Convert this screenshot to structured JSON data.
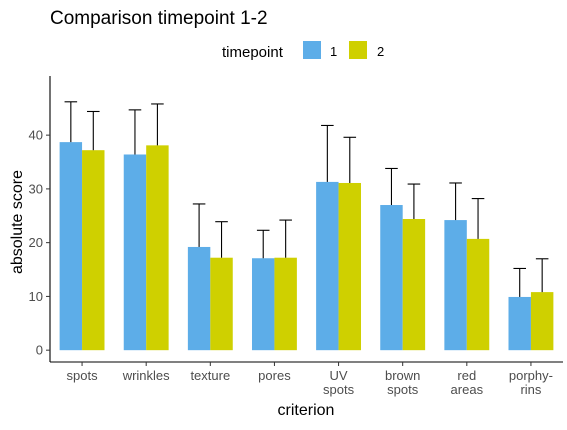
{
  "chart_data": {
    "type": "bar",
    "title": "Comparison timepoint 1-2",
    "xlabel": "criterion",
    "ylabel": "absolute score",
    "legend_title": "timepoint",
    "legend_position": "top",
    "ylim": [
      -2.2,
      51
    ],
    "yticks": [
      0,
      10,
      20,
      30,
      40
    ],
    "grid": false,
    "categories": [
      [
        "spots"
      ],
      [
        "wrinkles"
      ],
      [
        "texture"
      ],
      [
        "pores"
      ],
      [
        "UV",
        "spots"
      ],
      [
        "brown",
        "spots"
      ],
      [
        "red",
        "areas"
      ],
      [
        "porphy-",
        "rins"
      ]
    ],
    "series": [
      {
        "name": "1",
        "color": "#5dade8",
        "values": [
          38.7,
          36.4,
          19.2,
          17.1,
          31.3,
          27.0,
          24.2,
          9.9
        ],
        "error_upper": [
          46.2,
          44.7,
          27.2,
          22.3,
          41.8,
          33.8,
          31.1,
          15.2
        ]
      },
      {
        "name": "2",
        "color": "#cfd000",
        "values": [
          37.2,
          38.1,
          17.2,
          17.2,
          31.1,
          24.4,
          20.7,
          10.8
        ],
        "error_upper": [
          44.4,
          45.8,
          23.9,
          24.2,
          39.6,
          30.9,
          28.2,
          17.0
        ]
      }
    ]
  }
}
